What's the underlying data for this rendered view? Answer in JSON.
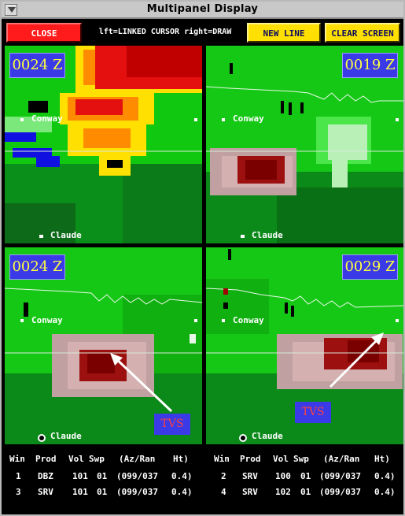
{
  "window": {
    "title": "Multipanel Display",
    "menu_icon": "window-menu-icon"
  },
  "toolbar": {
    "close_label": "CLOSE",
    "hint": "lft=LINKED CURSOR  right=DRAW",
    "new_line_label": "NEW LINE",
    "clear_label": "CLEAR SCREEN"
  },
  "panels": [
    {
      "time": "0024 Z",
      "town_north": "Conway",
      "town_south": "Claude"
    },
    {
      "time": "0019 Z",
      "town_north": "Conway",
      "town_south": "Claude"
    },
    {
      "time": "0024 Z",
      "town_north": "Conway",
      "town_south": "Claude",
      "annotation": "TVS"
    },
    {
      "time": "0029 Z",
      "town_north": "Conway",
      "town_south": "Claude",
      "annotation": "TVS"
    }
  ],
  "table": {
    "headers": [
      "Win",
      "Prod",
      "Vol",
      "Swp",
      "(Az/Ran",
      "Ht)"
    ],
    "rows": [
      {
        "win": "1",
        "prod": "DBZ",
        "vol": "101",
        "swp": "01",
        "azran": "(099/037",
        "ht": "0.4)"
      },
      {
        "win": "2",
        "prod": "SRV",
        "vol": "100",
        "swp": "01",
        "azran": "(099/037",
        "ht": "0.4)"
      },
      {
        "win": "3",
        "prod": "SRV",
        "vol": "101",
        "swp": "01",
        "azran": "(099/037",
        "ht": "0.4)"
      },
      {
        "win": "4",
        "prod": "SRV",
        "vol": "102",
        "swp": "01",
        "azran": "(099/037",
        "ht": "0.4)"
      }
    ]
  },
  "colors": {
    "close": "#ff1b1b",
    "yellow_buttons": "#ffe000",
    "label_box": "#3a3ae6",
    "time_text": "#ffff40",
    "tvs_text": "#ff4040"
  }
}
